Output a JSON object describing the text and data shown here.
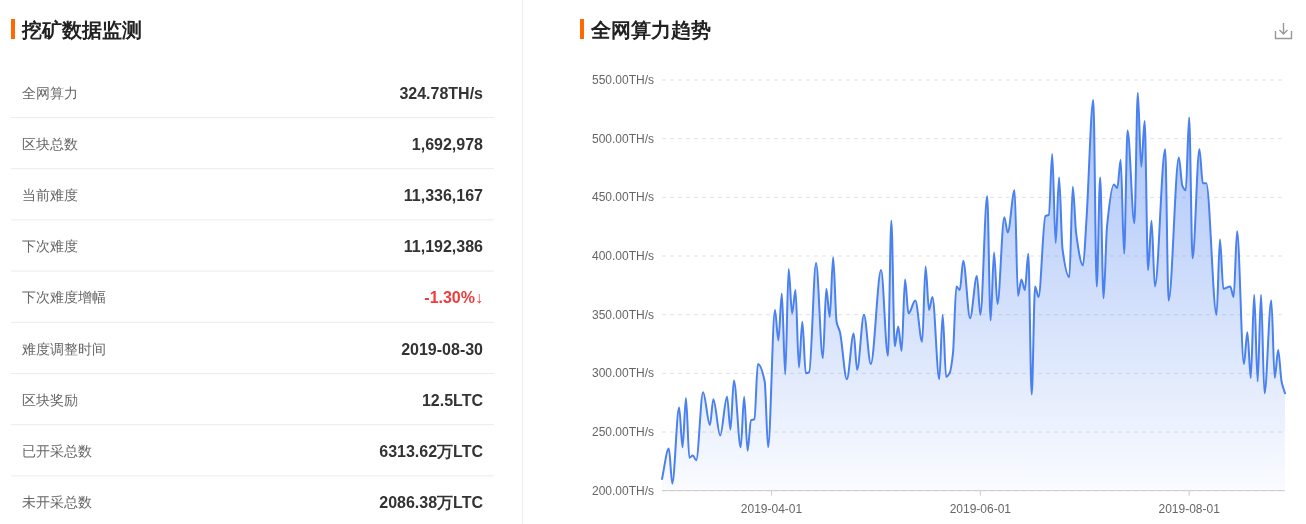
{
  "chart_data": [
    {
      "type": "other",
      "title": "挖矿数据监测",
      "categories": [
        "全网算力",
        "区块总数",
        "当前难度",
        "下次难度",
        "下次难度增幅",
        "难度调整时间",
        "区块奖励",
        "已开采总数",
        "未开采总数"
      ],
      "value_labels": [
        "324.78TH/s",
        "1,692,978",
        "11,336,167",
        "11,192,386",
        "-1.30%↓",
        "2019-08-30",
        "12.5LTC",
        "6313.62万LTC",
        "2086.38万LTC"
      ],
      "colors": [
        "#333333",
        "#333333",
        "#333333",
        "#333333",
        "#ee3c3c",
        "#333333",
        "#333333",
        "#333333",
        "#333333"
      ]
    },
    {
      "type": "area",
      "title": "全网算力趋势",
      "color": "#4a80f0",
      "x": [
        "2019-02-28",
        "2019-03-02",
        "2019-03-03",
        "2019-03-05",
        "2019-03-06",
        "2019-03-07",
        "2019-03-08",
        "2019-03-09",
        "2019-03-10",
        "2019-03-12",
        "2019-03-14",
        "2019-03-15",
        "2019-03-17",
        "2019-03-19",
        "2019-03-20",
        "2019-03-21",
        "2019-03-23",
        "2019-03-24",
        "2019-03-25",
        "2019-03-26",
        "2019-03-27",
        "2019-03-28",
        "2019-03-30",
        "2019-03-31",
        "2019-04-02",
        "2019-04-03",
        "2019-04-04",
        "2019-04-05",
        "2019-04-06",
        "2019-04-07",
        "2019-04-08",
        "2019-04-09",
        "2019-04-10",
        "2019-04-11",
        "2019-04-12",
        "2019-04-14",
        "2019-04-16",
        "2019-04-17",
        "2019-04-18",
        "2019-04-19",
        "2019-04-20",
        "2019-04-21",
        "2019-04-23",
        "2019-04-25",
        "2019-04-26",
        "2019-04-28",
        "2019-04-30",
        "2019-05-03",
        "2019-05-05",
        "2019-05-06",
        "2019-05-07",
        "2019-05-08",
        "2019-05-09",
        "2019-05-10",
        "2019-05-11",
        "2019-05-13",
        "2019-05-15",
        "2019-05-16",
        "2019-05-17",
        "2019-05-18",
        "2019-05-20",
        "2019-05-21",
        "2019-05-22",
        "2019-05-23",
        "2019-05-24",
        "2019-05-25",
        "2019-05-26",
        "2019-05-27",
        "2019-05-29",
        "2019-05-31",
        "2019-06-01",
        "2019-06-03",
        "2019-06-04",
        "2019-06-05",
        "2019-06-06",
        "2019-06-08",
        "2019-06-09",
        "2019-06-11",
        "2019-06-12",
        "2019-06-13",
        "2019-06-14",
        "2019-06-15",
        "2019-06-16",
        "2019-06-17",
        "2019-06-18",
        "2019-06-20",
        "2019-06-21",
        "2019-06-22",
        "2019-06-23",
        "2019-06-24",
        "2019-06-25",
        "2019-06-27",
        "2019-06-28",
        "2019-06-29",
        "2019-07-01",
        "2019-07-02",
        "2019-07-04",
        "2019-07-05",
        "2019-07-06",
        "2019-07-07",
        "2019-07-08",
        "2019-07-10",
        "2019-07-11",
        "2019-07-12",
        "2019-07-13",
        "2019-07-14",
        "2019-07-16",
        "2019-07-17",
        "2019-07-18",
        "2019-07-19",
        "2019-07-20",
        "2019-07-21",
        "2019-07-22",
        "2019-07-25",
        "2019-07-26",
        "2019-07-29",
        "2019-07-30",
        "2019-07-31",
        "2019-08-01",
        "2019-08-02",
        "2019-08-04",
        "2019-08-05",
        "2019-08-06",
        "2019-08-09",
        "2019-08-10",
        "2019-08-11",
        "2019-08-13",
        "2019-08-14",
        "2019-08-15",
        "2019-08-17",
        "2019-08-18",
        "2019-08-19",
        "2019-08-20",
        "2019-08-21",
        "2019-08-22",
        "2019-08-23",
        "2019-08-25",
        "2019-08-26",
        "2019-08-27",
        "2019-08-28",
        "2019-08-29"
      ],
      "values": [
        210,
        236,
        206,
        271,
        237,
        279,
        228,
        230,
        226,
        284,
        256,
        278,
        247,
        280,
        252,
        294,
        237,
        280,
        234,
        260,
        261,
        308,
        293,
        237,
        354,
        328,
        368,
        299,
        389,
        351,
        371,
        305,
        344,
        300,
        301,
        394,
        313,
        372,
        348,
        399,
        344,
        335,
        295,
        334,
        303,
        350,
        308,
        388,
        315,
        430,
        323,
        340,
        319,
        380,
        351,
        362,
        327,
        391,
        354,
        365,
        295,
        350,
        297,
        300,
        317,
        374,
        371,
        396,
        347,
        383,
        350,
        451,
        345,
        403,
        359,
        433,
        420,
        456,
        366,
        380,
        371,
        402,
        282,
        374,
        365,
        434,
        435,
        487,
        411,
        467,
        406,
        382,
        459,
        419,
        392,
        431,
        533,
        374,
        467,
        364,
        425,
        461,
        458,
        482,
        402,
        507,
        428,
        539,
        476,
        515,
        388,
        430,
        374,
        491,
        362,
        484,
        460,
        456,
        518,
        398,
        491,
        462,
        462,
        350,
        414,
        372,
        374,
        365,
        421,
        308,
        335,
        296,
        367,
        293,
        367,
        283,
        362,
        296,
        320,
        293,
        283
      ],
      "xlim": [
        "2019-02-28",
        "2019-08-29"
      ],
      "xticks": [
        "2019-04-01",
        "2019-06-01",
        "2019-08-01"
      ],
      "ylim": [
        200,
        550
      ],
      "yticks": [
        {
          "value": 200,
          "label": "200.00TH/s"
        },
        {
          "value": 250,
          "label": "250.00TH/s"
        },
        {
          "value": 300,
          "label": "300.00TH/s"
        },
        {
          "value": 350,
          "label": "350.00TH/s"
        },
        {
          "value": 400,
          "label": "400.00TH/s"
        },
        {
          "value": 450,
          "label": "450.00TH/s"
        },
        {
          "value": 500,
          "label": "500.00TH/s"
        },
        {
          "value": 550,
          "label": "550.00TH/s"
        }
      ],
      "grid": "y"
    }
  ]
}
